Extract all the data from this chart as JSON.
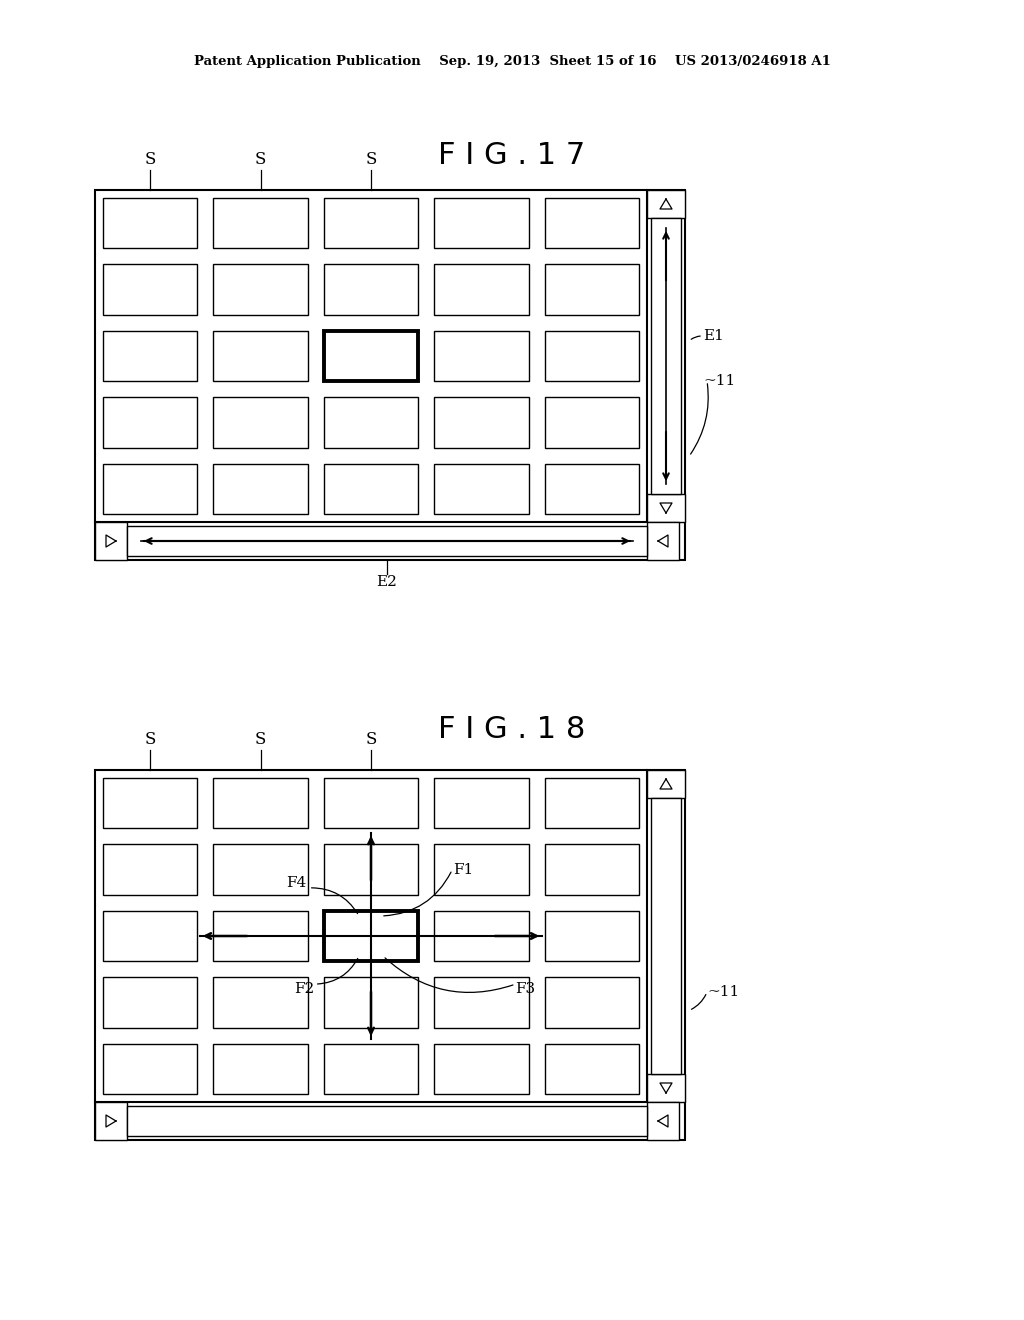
{
  "background_color": "#ffffff",
  "header_text": "Patent Application Publication    Sep. 19, 2013  Sheet 15 of 16    US 2013/0246918 A1",
  "fig17_title": "F I G . 1 7",
  "fig18_title": "F I G . 1 8",
  "fig17_label_E1": "E1",
  "fig17_label_11": "11",
  "fig17_label_E2": "E2",
  "fig17_label_S": "S",
  "fig18_label_11": "11",
  "fig18_label_S": "S",
  "fig18_label_F1": "F1",
  "fig18_label_F2": "F2",
  "fig18_label_F3": "F3",
  "fig18_label_F4": "F4",
  "grid_rows": 5,
  "grid_cols": 5,
  "line_color": "#000000",
  "thick_line_color": "#000000",
  "arrow_color": "#000000"
}
